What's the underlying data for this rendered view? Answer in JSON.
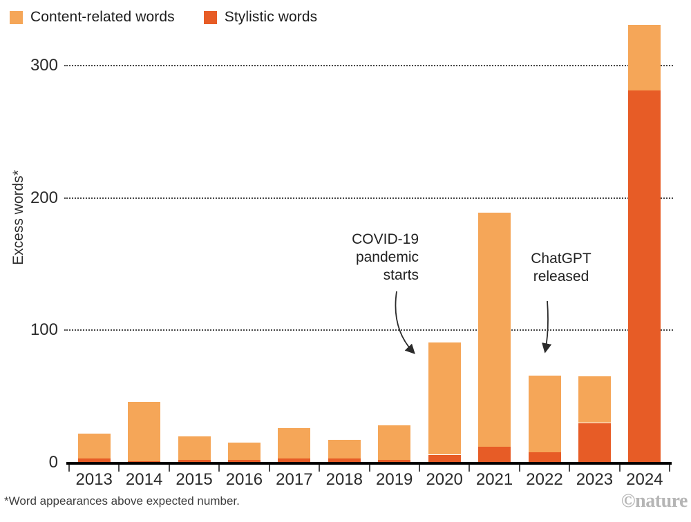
{
  "legend": {
    "items": [
      {
        "label": "Content-related words",
        "color": "#F5A658"
      },
      {
        "label": "Stylistic words",
        "color": "#E75C26"
      }
    ]
  },
  "chart_data": {
    "type": "bar",
    "stacked": true,
    "categories": [
      "2013",
      "2014",
      "2015",
      "2016",
      "2017",
      "2018",
      "2019",
      "2020",
      "2021",
      "2022",
      "2023",
      "2024"
    ],
    "series": [
      {
        "name": "Stylistic words",
        "color": "#E75C26",
        "values": [
          3,
          1,
          2,
          2,
          3,
          3,
          2,
          6,
          12,
          8,
          30,
          281
        ]
      },
      {
        "name": "Content-related words",
        "color": "#F5A658",
        "values": [
          19,
          45,
          18,
          13,
          23,
          14,
          26,
          85,
          177,
          58,
          35,
          50
        ]
      }
    ],
    "totals": [
      22,
      46,
      20,
      15,
      26,
      17,
      28,
      91,
      189,
      66,
      65,
      331
    ],
    "title": "",
    "xlabel": "",
    "ylabel": "Excess words*",
    "yticks": [
      0,
      100,
      200,
      300
    ],
    "ylim": [
      0,
      335
    ],
    "grid": "horizontal-dotted",
    "legend_position": "top-left"
  },
  "annotations": [
    {
      "lines": [
        "COVID-19",
        "pandemic",
        "starts"
      ],
      "target_year": "2020"
    },
    {
      "lines": [
        "ChatGPT",
        "released"
      ],
      "target_year": "2022"
    }
  ],
  "footnote": "*Word appearances above expected number.",
  "credit": "©nature"
}
